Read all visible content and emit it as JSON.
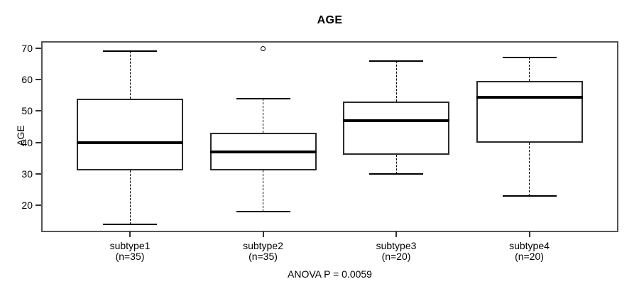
{
  "title": "AGE",
  "y_axis": {
    "label": "AGE"
  },
  "footer": "ANOVA P = 0.0059",
  "colors": {
    "foreground": "#000000",
    "background": "#ffffff",
    "frame": "#555555"
  },
  "chart_data": {
    "type": "boxplot",
    "title": "AGE",
    "xlabel": "",
    "ylabel": "AGE",
    "ylim": [
      12,
      72
    ],
    "yticks": [
      20,
      30,
      40,
      50,
      60,
      70
    ],
    "grid": false,
    "legend": false,
    "annotation": "ANOVA P = 0.0059",
    "categories": [
      "subtype1",
      "subtype2",
      "subtype3",
      "subtype4"
    ],
    "group_sizes": [
      "(n=35)",
      "(n=35)",
      "(n=20)",
      "(n=20)"
    ],
    "series": [
      {
        "name": "subtype1",
        "n": 35,
        "whisker_low": 14,
        "q1": 31,
        "median": 40,
        "q3": 54,
        "whisker_high": 69,
        "outliers": []
      },
      {
        "name": "subtype2",
        "n": 35,
        "whisker_low": 18,
        "q1": 31,
        "median": 37,
        "q3": 43,
        "whisker_high": 54,
        "outliers": [
          70
        ]
      },
      {
        "name": "subtype3",
        "n": 20,
        "whisker_low": 30,
        "q1": 36,
        "median": 47,
        "q3": 53,
        "whisker_high": 66,
        "outliers": []
      },
      {
        "name": "subtype4",
        "n": 20,
        "whisker_low": 23,
        "q1": 40,
        "median": 54.5,
        "q3": 59.5,
        "whisker_high": 67,
        "outliers": []
      }
    ]
  }
}
